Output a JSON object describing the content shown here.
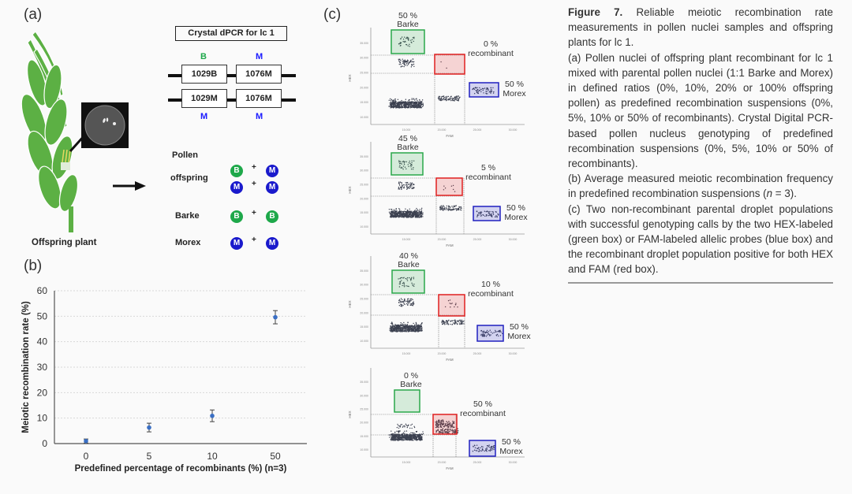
{
  "panels": {
    "a": {
      "label": "(a)",
      "plant_label": "Offspring plant",
      "dpcr_title": "Crystal dPCR for lc 1",
      "top_alleles": [
        "B",
        "M"
      ],
      "bottom_alleles": [
        "M",
        "M"
      ],
      "row1_boxes": [
        "1029B",
        "1076M"
      ],
      "row2_boxes": [
        "1029M",
        "1076M"
      ],
      "pollen_heading": "Pollen",
      "pollen_rows": [
        {
          "name": "offspring",
          "pairs": [
            [
              "B",
              "M"
            ],
            [
              "M",
              "M"
            ]
          ]
        },
        {
          "name": "Barke",
          "pairs": [
            [
              "B",
              "B"
            ]
          ]
        },
        {
          "name": "Morex",
          "pairs": [
            [
              "M",
              "M"
            ]
          ]
        }
      ],
      "plus": "+",
      "colors": {
        "barke": "#1ea84a",
        "morex": "#1a1acc",
        "plant": "#5cb044"
      }
    },
    "b": {
      "label": "(b)"
    },
    "c": {
      "label": "(c)",
      "x_axis_label": "FAM",
      "y_axis_label": "HEX",
      "x_ticks": [
        "15.000",
        "20.000",
        "25.000",
        "30.000"
      ],
      "y_ticks": [
        "10.000",
        "15.000",
        "20.000",
        "25.000",
        "30.000",
        "35.000"
      ],
      "plots": [
        {
          "barke_pct": "50 %",
          "barke": "Barke",
          "recomb_pct": "0 %",
          "recomb": "recombinant",
          "morex_pct": "50 %",
          "morex": "Morex"
        },
        {
          "barke_pct": "45 %",
          "barke": "Barke",
          "recomb_pct": "5 %",
          "recomb": "recombinant",
          "morex_pct": "50 %",
          "morex": "Morex"
        },
        {
          "barke_pct": "40 %",
          "barke": "Barke",
          "recomb_pct": "10 %",
          "recomb": "recombinant",
          "morex_pct": "50 %",
          "morex": "Morex"
        },
        {
          "barke_pct": "0 %",
          "barke": "Barke",
          "recomb_pct": "50 %",
          "recomb": "recombinant",
          "morex_pct": "50 %",
          "morex": "Morex"
        }
      ],
      "box_colors": {
        "green": "#2aa84a",
        "red": "#e02020",
        "blue": "#2020c0"
      }
    }
  },
  "caption": {
    "title": "Figure 7.",
    "title_rest": " Reliable meiotic recombination rate measurements in pollen nuclei samples and offspring plants for lc 1.",
    "para_a": "(a) Pollen nuclei of offspring plant recombinant for lc 1 mixed with parental pollen nuclei (1:1 Barke and Morex) in defined ratios (0%, 10%, 20% or 100% offspring pollen) as predefined recombination suspensions (0%, 5%, 10% or 50% of recombinants). Crystal Digital PCR-based pollen nucleus genotyping of predefined recombination suspensions (0%, 5%, 10% or 50% of recombinants).",
    "para_b_pre": "(b) Average measured meiotic recombination frequency in predefined recombination suspensions (",
    "para_b_n": "n",
    "para_b_post": " = 3).",
    "para_c": "(c) Two non-recombinant parental droplet populations with successful genotyping calls by the two HEX-labeled (green box) or FAM-labeled allelic probes (blue box) and the recombinant droplet population positive for both HEX and FAM (red box)."
  },
  "chart_data": {
    "type": "scatter",
    "title": "",
    "xlabel": "Predefined percentage of recombinants (%) (n=3)",
    "ylabel": "Meiotic recombination rate (%)",
    "categories": [
      "0",
      "5",
      "10",
      "50"
    ],
    "values": [
      1.0,
      6.3,
      10.9,
      49.6
    ],
    "errors": [
      0.8,
      1.7,
      2.3,
      2.6
    ],
    "ylim": [
      0,
      60
    ],
    "yticks": [
      0,
      10,
      20,
      30,
      40,
      50,
      60
    ],
    "grid": true,
    "marker_color": "#3a6fc4",
    "legend": "none"
  }
}
